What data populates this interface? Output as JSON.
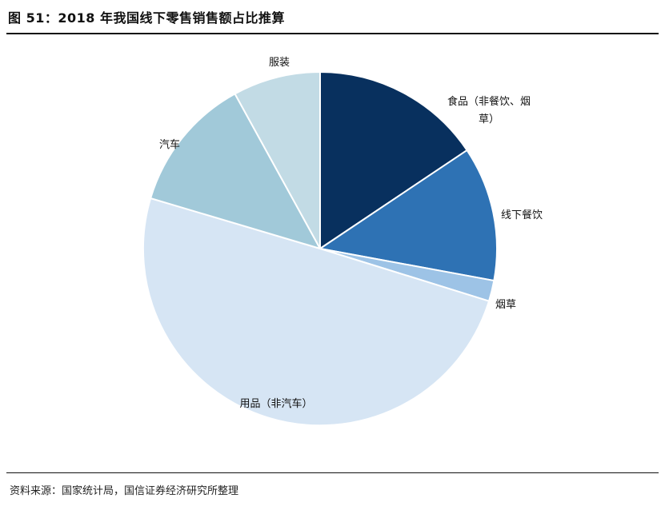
{
  "title": "图 51：2018 年我国线下零售销售额占比推算",
  "source": "资料来源：国家统计局，国信证券经济研究所整理",
  "chart_data": {
    "type": "pie",
    "title": "图 51：2018 年我国线下零售销售额占比推算",
    "start_angle_deg": 0,
    "direction": "clockwise",
    "slices": [
      {
        "label_lines": [
          "食品（非餐饮、烟",
          "草）"
        ],
        "value": 15.6,
        "color": "#08305E"
      },
      {
        "label_lines": [
          "线下餐饮"
        ],
        "value": 12.3,
        "color": "#2E72B4"
      },
      {
        "label_lines": [
          "烟草"
        ],
        "value": 1.9,
        "color": "#9DC3E6"
      },
      {
        "label_lines": [
          "用品（非汽车）"
        ],
        "value": 49.8,
        "color": "#D6E5F4"
      },
      {
        "label_lines": [
          "汽车"
        ],
        "value": 12.4,
        "color": "#A1C9D9"
      },
      {
        "label_lines": [
          "服装"
        ],
        "value": 8.0,
        "color": "#C2DBE5"
      }
    ]
  }
}
